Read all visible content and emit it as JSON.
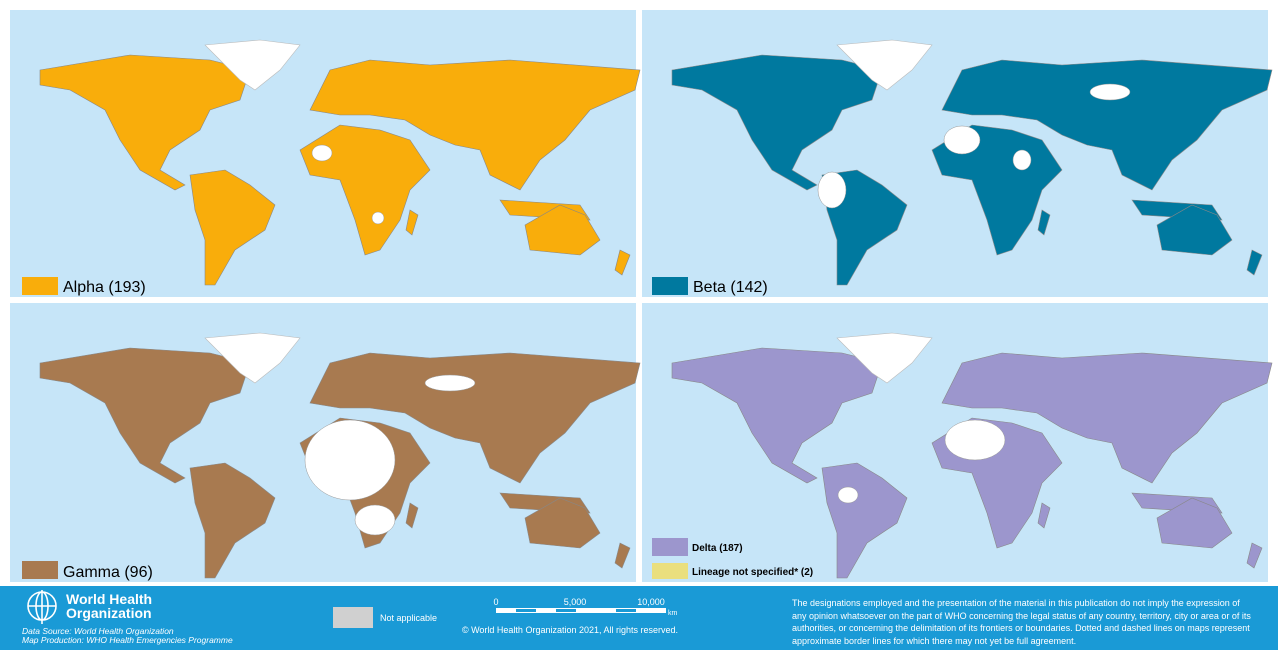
{
  "panels": [
    {
      "legend": [
        {
          "label": "Alpha (193)"
        }
      ]
    },
    {
      "legend": [
        {
          "label": "Beta (142)"
        }
      ]
    },
    {
      "legend": [
        {
          "label": "Gamma (96)"
        }
      ]
    },
    {
      "legend": [
        {
          "label": "Delta (187)"
        },
        {
          "label": "Lineage not specified* (2)"
        }
      ]
    }
  ],
  "footer": {
    "org_line1": "World Health",
    "org_line2": "Organization",
    "data_source": "Data Source: World Health Organization",
    "map_production": "Map Production: WHO Health Emergencies Programme",
    "not_applicable": "Not applicable",
    "scale": {
      "labels": [
        "0",
        "5,000",
        "10,000"
      ],
      "unit": "km"
    },
    "copyright": "© World Health Organization 2021, All rights reserved.",
    "disclaimer": "The designations employed and the presentation of the material in this publication do not imply the expression of any opinion whatsoever on the part of WHO concerning the legal status of any country, territory, city or area or of its authorities, or concerning the delimitation of its frontiers or boundaries. Dotted and dashed lines on maps represent approximate border lines for which there may not yet be full agreement."
  }
}
